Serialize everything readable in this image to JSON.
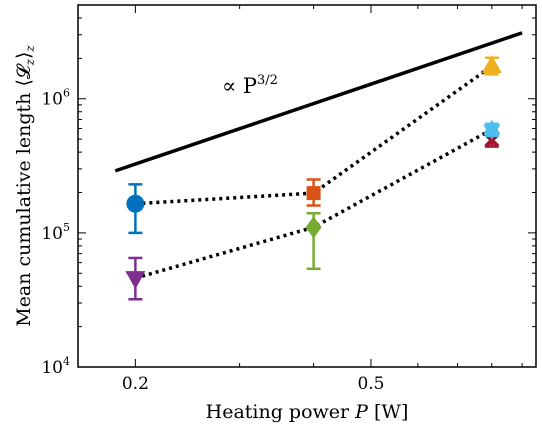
{
  "chart_data": {
    "type": "scatter",
    "xlabel": "Heating power",
    "xlabel_symbol": "P",
    "xlabel_unit": "[W]",
    "ylabel": "Mean cumulative length",
    "ylabel_symbol": "⟨𝓛",
    "ylabel_sub": "z",
    "ylabel_close": "⟩",
    "ylabel_sub2": "z",
    "xscale": "log",
    "yscale": "log",
    "xlim": [
      0.16,
      0.95
    ],
    "ylim": [
      10000,
      5000000
    ],
    "x_ticks": [
      {
        "value": 0.2,
        "label": "0.2"
      },
      {
        "value": 0.5,
        "label": "0.5"
      }
    ],
    "y_ticks": [
      {
        "value": 10000,
        "base": "10",
        "exp": "4"
      },
      {
        "value": 100000,
        "base": "10",
        "exp": "5"
      },
      {
        "value": 1000000,
        "base": "10",
        "exp": "6"
      }
    ],
    "grid": false,
    "reference_line": {
      "label": "∝ P",
      "label_exp": "3/2",
      "x": [
        0.185,
        0.9
      ],
      "y": [
        290000,
        3100000
      ],
      "color": "#000000"
    },
    "series": [
      {
        "marker": "circle",
        "connect": true,
        "points": [
          {
            "x": 0.2,
            "y": 165000,
            "err_low": 100000,
            "err_high": 230000,
            "color": "#0072BD",
            "marker": "circle"
          },
          {
            "x": 0.4,
            "y": 198000,
            "err_low": 160000,
            "err_high": 250000,
            "color": "#D95319",
            "marker": "square"
          },
          {
            "x": 0.8,
            "y": 1750000,
            "err_low": 1520000,
            "err_high": 2020000,
            "color": "#EDB120",
            "marker": "triangle-up"
          }
        ]
      },
      {
        "marker": "triangle-down",
        "connect": true,
        "points": [
          {
            "x": 0.2,
            "y": 46000,
            "err_low": 32000,
            "err_high": 65000,
            "color": "#7E2F8E",
            "marker": "triangle-down"
          },
          {
            "x": 0.4,
            "y": 110000,
            "err_low": 54000,
            "err_high": 140000,
            "color": "#77AC30",
            "marker": "diamond"
          },
          {
            "x": 0.8,
            "y": 590000,
            "err_low": 530000,
            "err_high": 650000,
            "color": "#4DBEEE",
            "marker": "hexagram"
          },
          {
            "x": 0.8,
            "y": 490000,
            "err_low": 440000,
            "err_high": 540000,
            "color": "#A2142F",
            "marker": "x"
          }
        ]
      }
    ]
  }
}
